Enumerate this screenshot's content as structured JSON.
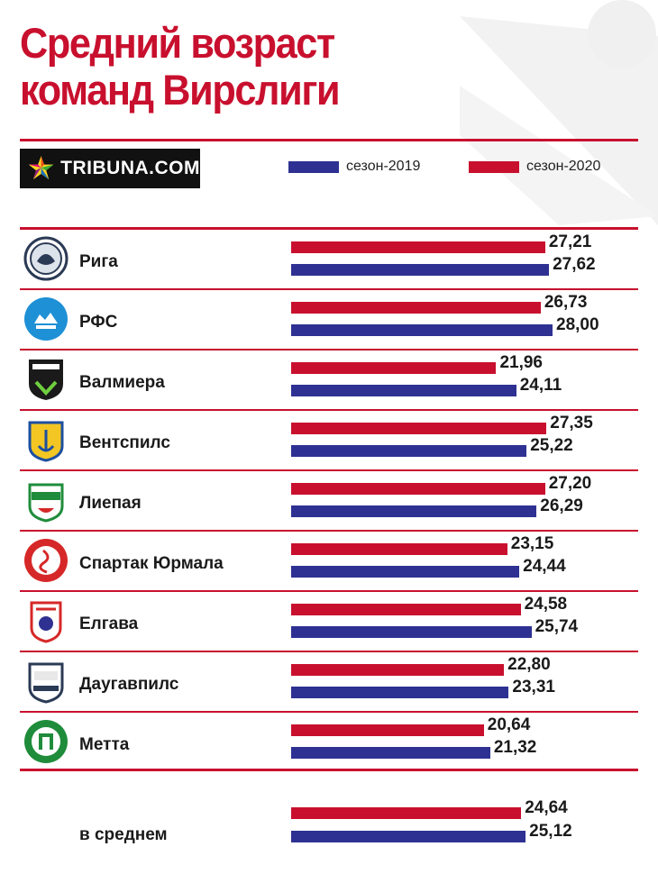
{
  "header": {
    "title_line1": "Средний возраст",
    "title_line2": "команд Вирслиги"
  },
  "brand": {
    "logo_text": "TRIBUNA.COM"
  },
  "legend": [
    {
      "label": "сезон-2019",
      "color": "#2e3192"
    },
    {
      "label": "сезон-2020",
      "color": "#c8102e"
    }
  ],
  "chart_data": {
    "type": "bar",
    "orientation": "horizontal",
    "title": "Средний возраст команд Вирслиги",
    "categories": [
      "Рига",
      "РФС",
      "Валмиера",
      "Вентспилс",
      "Лиепая",
      "Спартак Юрмала",
      "Елгава",
      "Даугавпилс",
      "Метта"
    ],
    "series": [
      {
        "name": "сезон-2020",
        "color": "#c8102e",
        "values": [
          27.21,
          26.73,
          21.96,
          27.35,
          27.2,
          23.15,
          24.58,
          22.8,
          20.64
        ],
        "labels": [
          "27,21",
          "26,73",
          "21,96",
          "27,35",
          "27,20",
          "23,15",
          "24,58",
          "22,80",
          "20,64"
        ]
      },
      {
        "name": "сезон-2019",
        "color": "#2e3192",
        "values": [
          27.62,
          28.0,
          24.11,
          25.22,
          26.29,
          24.44,
          25.74,
          23.31,
          21.32
        ],
        "labels": [
          "27,62",
          "28,00",
          "24,11",
          "25,22",
          "26,29",
          "24,44",
          "25,74",
          "23,31",
          "21,32"
        ]
      }
    ],
    "average": {
      "label": "в среднем",
      "values": [
        24.64,
        25.12
      ],
      "labels": [
        "24,64",
        "25,12"
      ]
    },
    "grid": false,
    "legend_position": "top-right"
  }
}
